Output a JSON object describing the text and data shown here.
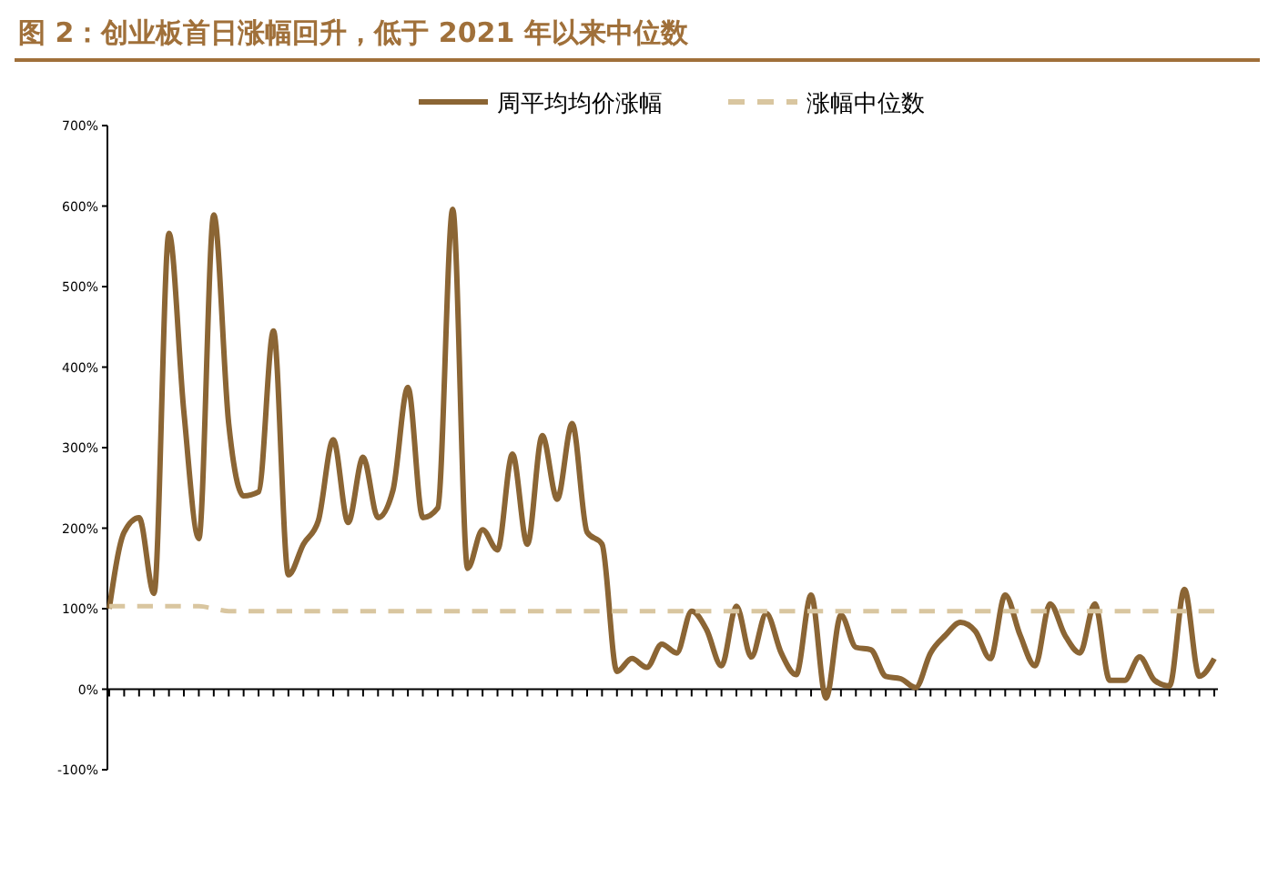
{
  "chart_data": {
    "type": "line",
    "title": "图 2：创业板首日涨幅回升，低于 2021 年以来中位数",
    "categories": [
      null,
      null,
      null,
      null,
      null,
      null,
      null,
      null,
      null,
      null,
      null,
      null,
      null,
      null,
      null,
      null,
      null,
      null,
      null,
      null,
      null,
      null,
      null,
      null,
      null,
      null,
      null,
      null,
      null,
      null,
      null,
      null,
      null,
      null,
      null,
      null,
      null,
      null,
      null,
      null,
      null,
      null,
      null,
      null,
      null,
      null,
      null,
      null,
      null,
      null,
      null,
      null,
      null,
      null,
      null,
      null,
      null,
      null,
      null,
      null,
      null,
      null,
      null,
      null,
      null,
      null,
      null,
      null,
      null,
      null,
      null,
      null,
      null,
      null,
      null
    ],
    "series": [
      {
        "name": "周平均均价涨幅",
        "color": "#8b6534",
        "line_style": "solid",
        "values": [
          100,
          195,
          213,
          119,
          566,
          344,
          187,
          589,
          330,
          240,
          245,
          445,
          142,
          180,
          209,
          310,
          207,
          288,
          213,
          247,
          375,
          213,
          225,
          596,
          150,
          198,
          173,
          292,
          180,
          315,
          236,
          330,
          195,
          180,
          22,
          38,
          27,
          56,
          45,
          97,
          74,
          29,
          103,
          40,
          94,
          45,
          18,
          117,
          -11,
          92,
          52,
          49,
          16,
          13,
          2,
          45,
          67,
          83,
          72,
          38,
          117,
          67,
          29,
          106,
          67,
          45,
          106,
          11,
          11,
          40,
          11,
          4,
          124,
          16,
          38
        ]
      },
      {
        "name": "涨幅中位数",
        "color": "#d9c6a0",
        "line_style": "dashed",
        "values": [
          103,
          103,
          103,
          103,
          103,
          103,
          103,
          100,
          97,
          97,
          97,
          97,
          97,
          97,
          97,
          97,
          97,
          97,
          97,
          97,
          97,
          97,
          97,
          97,
          97,
          97,
          97,
          97,
          97,
          97,
          97,
          97,
          97,
          97,
          97,
          97,
          97,
          97,
          97,
          97,
          97,
          97,
          97,
          97,
          97,
          97,
          97,
          97,
          97,
          97,
          97,
          97,
          97,
          97,
          97,
          97,
          97,
          97,
          97,
          97,
          97,
          97,
          97,
          97,
          97,
          97,
          97,
          97,
          97,
          97,
          97,
          97,
          97,
          97,
          97
        ]
      }
    ],
    "ylim": [
      -100,
      700
    ],
    "yticks": [
      {
        "value": -100,
        "label": "-100%"
      },
      {
        "value": 0,
        "label": "0%"
      },
      {
        "value": 100,
        "label": "100%"
      },
      {
        "value": 200,
        "label": "200%"
      },
      {
        "value": 300,
        "label": "300%"
      },
      {
        "value": 400,
        "label": "400%"
      },
      {
        "value": 500,
        "label": "500%"
      },
      {
        "value": 600,
        "label": "600%"
      },
      {
        "value": 700,
        "label": "700%"
      }
    ],
    "legend": "top",
    "tick_labels": "y"
  }
}
